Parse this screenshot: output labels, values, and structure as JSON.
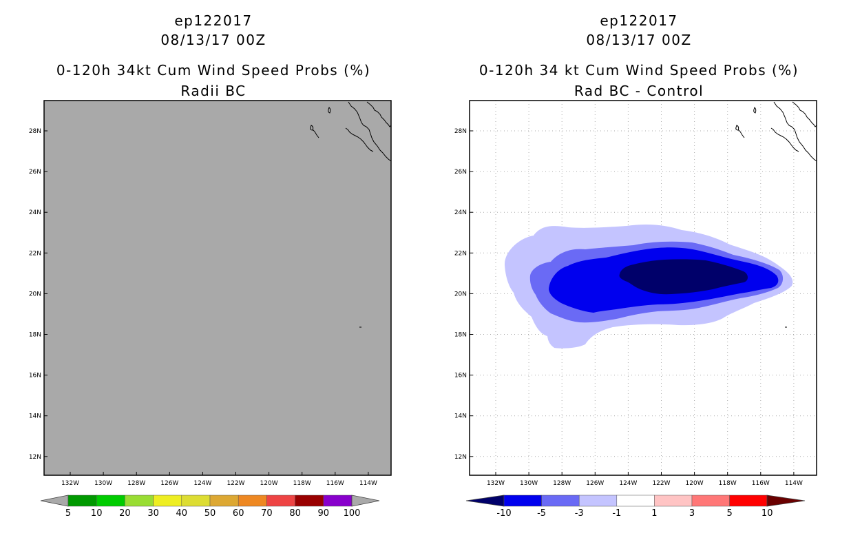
{
  "left_panel": {
    "title_line1": "ep122017",
    "title_line2": "08/13/17 00Z",
    "title_line3": "0-120h 34kt Cum Wind Speed Probs (%)",
    "title_line4": "Radii BC",
    "fill_color": "#a9a9a9",
    "colorbar": {
      "labels": [
        "5",
        "10",
        "20",
        "30",
        "40",
        "50",
        "60",
        "70",
        "80",
        "90",
        "100"
      ],
      "colors": [
        "#009900",
        "#00cc00",
        "#99dd33",
        "#eeee22",
        "#dddd33",
        "#dda833",
        "#ee8822",
        "#ee4444",
        "#990000",
        "#8800cc"
      ],
      "arrow_low": "#a9a9a9",
      "arrow_high": "#a9a9a9"
    }
  },
  "right_panel": {
    "title_line1": "ep122017",
    "title_line2": "08/13/17 00Z",
    "title_line3": "0-120h 34 kt Cum Wind Speed Probs (%)",
    "title_line4": "Rad BC - Control",
    "colorbar": {
      "labels": [
        "-10",
        "-5",
        "-3",
        "-1",
        "1",
        "3",
        "5",
        "10"
      ],
      "colors": [
        "#0000ee",
        "#6a6af5",
        "#c4c4ff",
        "#ffffff",
        "#ffc4c4",
        "#ff7777",
        "#ff0000"
      ],
      "arrow_low": "#00006a",
      "arrow_high": "#6a0000"
    },
    "contour_levels": [
      {
        "level": "-1 to -3",
        "color": "#c4c4ff"
      },
      {
        "level": "-3 to -5",
        "color": "#6a6af5"
      },
      {
        "level": "-5 to -10",
        "color": "#0000ee"
      },
      {
        "level": "< -10",
        "color": "#00006a"
      }
    ]
  },
  "map": {
    "lat_ticks": [
      "28N",
      "26N",
      "24N",
      "22N",
      "20N",
      "18N",
      "16N",
      "14N",
      "12N"
    ],
    "lon_ticks": [
      "132W",
      "130W",
      "128W",
      "126W",
      "124W",
      "122W",
      "120W",
      "118W",
      "116W",
      "114W"
    ]
  }
}
